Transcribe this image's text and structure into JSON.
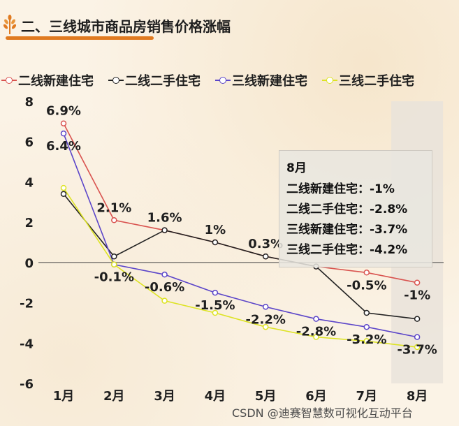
{
  "header": {
    "title": "二、三线城市商品房销售价格涨幅",
    "icon": "wheat-icon",
    "accent_color": "#e07a20"
  },
  "chart_data": {
    "type": "line",
    "categories": [
      "1月",
      "2月",
      "3月",
      "4月",
      "5月",
      "6月",
      "7月",
      "8月"
    ],
    "yticks": [
      "8",
      "6",
      "4",
      "2",
      "0",
      "-2",
      "-4",
      "-6"
    ],
    "ylim": [
      -6,
      8
    ],
    "grid": false,
    "legend_position": "top",
    "highlighted_category": "8月",
    "series": [
      {
        "name": "二线新建住宅",
        "color": "#d9534f",
        "values": [
          6.9,
          2.1,
          1.6,
          1.0,
          0.3,
          -0.2,
          -0.5,
          -1.0
        ]
      },
      {
        "name": "二线二手住宅",
        "color": "#222222",
        "values": [
          3.4,
          0.3,
          1.6,
          1.0,
          0.3,
          -0.2,
          -2.5,
          -2.8
        ]
      },
      {
        "name": "三线新建住宅",
        "color": "#5b45c9",
        "values": [
          6.4,
          -0.1,
          -0.6,
          -1.5,
          -2.2,
          -2.8,
          -3.2,
          -3.7
        ]
      },
      {
        "name": "三线二手住宅",
        "color": "#dde323",
        "values": [
          3.7,
          -0.1,
          -1.9,
          -2.5,
          -3.2,
          -3.7,
          -3.9,
          -4.2
        ]
      }
    ],
    "data_labels": [
      {
        "category": "1月",
        "value": 6.9,
        "text": "6.9%"
      },
      {
        "category": "1月",
        "value": 6.4,
        "text": "6.4%"
      },
      {
        "category": "2月",
        "value": 2.1,
        "text": "2.1%"
      },
      {
        "category": "2月",
        "value": -0.1,
        "text": "-0.1%"
      },
      {
        "category": "3月",
        "value": 1.6,
        "text": "1.6%"
      },
      {
        "category": "3月",
        "value": -0.6,
        "text": "-0.6%"
      },
      {
        "category": "4月",
        "value": 1.0,
        "text": "1%"
      },
      {
        "category": "4月",
        "value": -1.5,
        "text": "-1.5%"
      },
      {
        "category": "5月",
        "value": 0.3,
        "text": "0.3%"
      },
      {
        "category": "5月",
        "value": -2.2,
        "text": "-2.2%"
      },
      {
        "category": "6月",
        "value": -2.8,
        "text": "-2.8%"
      },
      {
        "category": "7月",
        "value": -0.5,
        "text": "-0.5%"
      },
      {
        "category": "7月",
        "value": -3.2,
        "text": "-3.2%"
      },
      {
        "category": "8月",
        "value": -1.0,
        "text": "-1%"
      },
      {
        "category": "8月",
        "value": -3.7,
        "text": "-3.7%"
      }
    ]
  },
  "tooltip": {
    "title": "8月",
    "rows": [
      "二线新建住宅：-1%",
      "二线二手住宅：-2.8%",
      "三线新建住宅：-3.7%",
      "三线二手住宅：-4.2%"
    ]
  },
  "watermark": "CSDN @迪赛智慧数可视化互动平台"
}
